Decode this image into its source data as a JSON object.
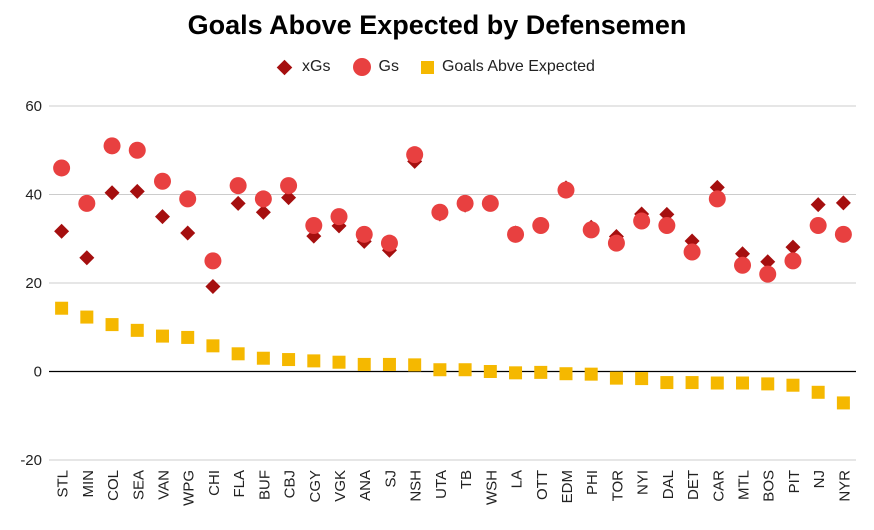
{
  "chart_data": {
    "type": "scatter",
    "title": "Goals Above Expected by Defensemen",
    "categories": [
      "STL",
      "MIN",
      "COL",
      "SEA",
      "VAN",
      "WPG",
      "CHI",
      "FLA",
      "BUF",
      "CBJ",
      "CGY",
      "VGK",
      "ANA",
      "SJ",
      "NSH",
      "UTA",
      "TB",
      "WSH",
      "LA",
      "OTT",
      "EDM",
      "PHI",
      "TOR",
      "NYI",
      "DAL",
      "DET",
      "CAR",
      "MTL",
      "BOS",
      "PIT",
      "NJ",
      "NYR"
    ],
    "series": [
      {
        "name": "xGs",
        "marker": "diamond",
        "color": "#a50f0f",
        "values": [
          31.7,
          25.7,
          40.4,
          40.7,
          35.0,
          31.3,
          19.2,
          38.0,
          36.0,
          39.3,
          30.6,
          32.9,
          29.4,
          27.4,
          47.5,
          35.6,
          37.6,
          38.0,
          31.3,
          33.2,
          41.5,
          32.6,
          30.5,
          35.6,
          35.5,
          29.5,
          41.6,
          26.6,
          24.8,
          28.1,
          37.7,
          38.1
        ]
      },
      {
        "name": "Gs",
        "marker": "circle",
        "color": "#e84040",
        "values": [
          46,
          38,
          51,
          50,
          43,
          39,
          25,
          42,
          39,
          42,
          33,
          35,
          31,
          29,
          49,
          36,
          38,
          38,
          31,
          33,
          41,
          32,
          29,
          34,
          33,
          27,
          39,
          24,
          22,
          25,
          33,
          31
        ]
      },
      {
        "name": "Goals Abve Expected",
        "marker": "square",
        "color": "#f5b800",
        "values": [
          14.3,
          12.3,
          10.6,
          9.3,
          8.0,
          7.7,
          5.8,
          4.0,
          3.0,
          2.7,
          2.4,
          2.1,
          1.6,
          1.6,
          1.5,
          0.4,
          0.4,
          0.0,
          -0.3,
          -0.2,
          -0.5,
          -0.6,
          -1.5,
          -1.6,
          -2.5,
          -2.5,
          -2.6,
          -2.6,
          -2.8,
          -3.1,
          -4.7,
          -7.1
        ]
      }
    ],
    "ylim": [
      -20,
      60
    ],
    "yticks": [
      -20,
      0,
      20,
      40,
      60
    ],
    "xlabel": "",
    "ylabel": "",
    "grid": true,
    "legend_position": "top"
  }
}
